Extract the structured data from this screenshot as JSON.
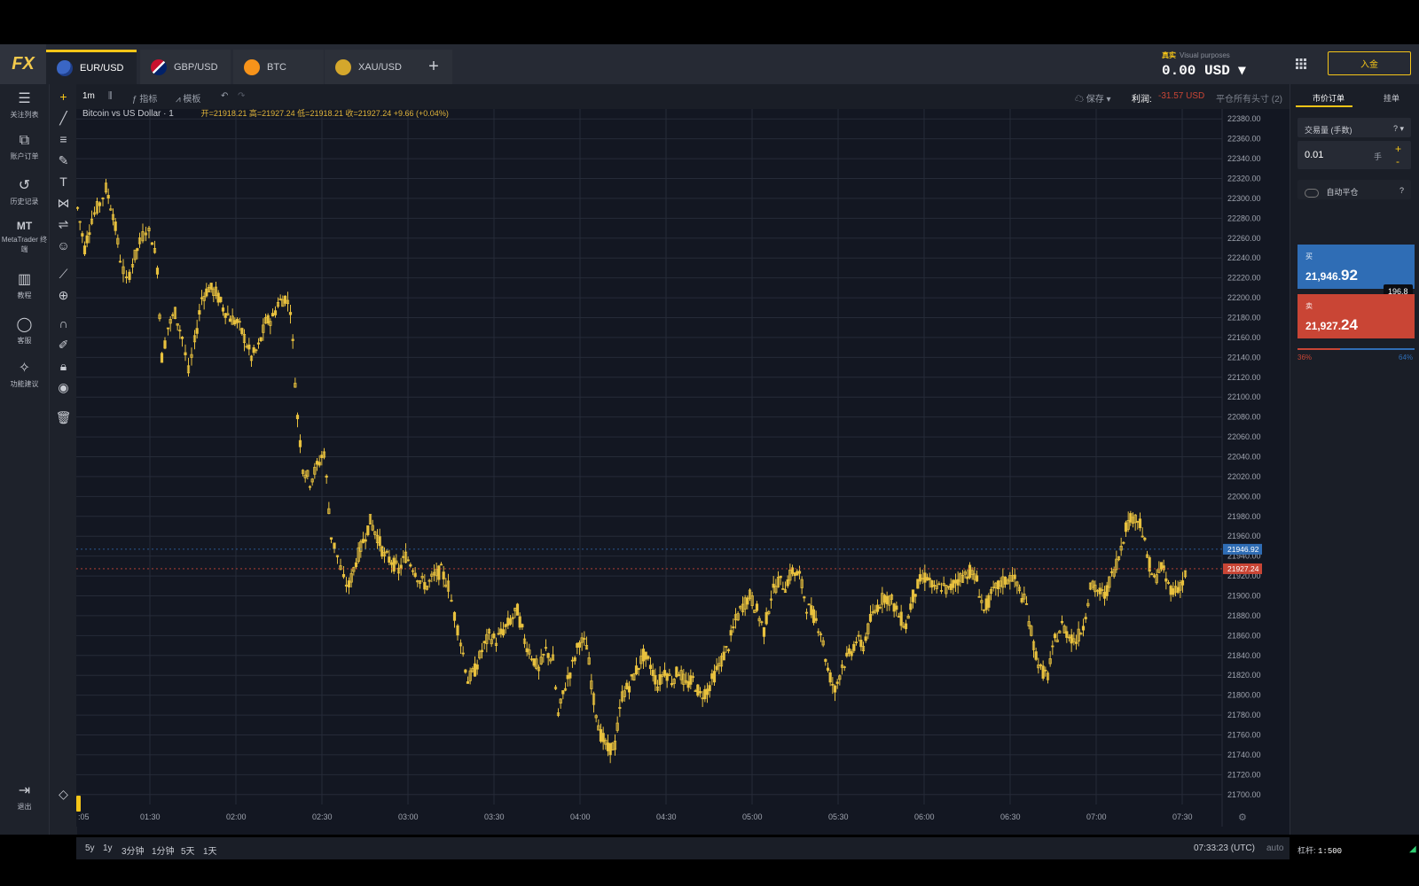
{
  "header": {
    "logo": "FX",
    "tabs": [
      {
        "label": "EUR/USD",
        "active": true
      },
      {
        "label": "GBP/USD",
        "active": false
      },
      {
        "label": "BTC",
        "active": false
      },
      {
        "label": "XAU/USD",
        "active": false
      }
    ],
    "add_tab": "+",
    "account_type": "真实",
    "account_note": "Visual purposes",
    "balance": "0.00 USD",
    "deposit_label": "入金"
  },
  "sidebar": {
    "items": [
      {
        "icon": "list-icon",
        "label": "关注列表"
      },
      {
        "icon": "briefcase-icon",
        "label": "账户订单"
      },
      {
        "icon": "history-icon",
        "label": "历史记录"
      },
      {
        "icon": "mt-icon",
        "label": "MetaTrader 终端",
        "glyph": "MT"
      },
      {
        "icon": "book-icon",
        "label": "教程"
      },
      {
        "icon": "chat-icon",
        "label": "客服"
      },
      {
        "icon": "bulb-icon",
        "label": "功能建议"
      }
    ],
    "logout_label": "退出"
  },
  "toolbar": {
    "timeframe": "1m",
    "indicators_label": "指标",
    "templates_label": "模板",
    "save_label": "保存",
    "profit_label": "利润:",
    "profit_value": "-31.57 USD",
    "close_all_label": "平仓所有头寸 (2)"
  },
  "legend": {
    "title": "Bitcoin vs US Dollar · 1",
    "ohlc": "开=21918.21 高=21927.24 低=21918.21 收=21927.24 +9.66 (+0.04%)"
  },
  "chart_data": {
    "type": "candlestick",
    "title": "Bitcoin vs US Dollar · 1",
    "ylim": [
      21690,
      22390
    ],
    "y_ticks": [
      "22380.00",
      "22360.00",
      "22340.00",
      "22320.00",
      "22300.00",
      "22280.00",
      "22260.00",
      "22240.00",
      "22220.00",
      "22200.00",
      "22180.00",
      "22160.00",
      "22140.00",
      "22120.00",
      "22100.00",
      "22080.00",
      "22060.00",
      "22040.00",
      "22020.00",
      "22000.00",
      "21980.00",
      "21960.00",
      "21940.00",
      "21920.00",
      "21900.00",
      "21880.00",
      "21860.00",
      "21840.00",
      "21820.00",
      "21800.00",
      "21780.00",
      "21760.00",
      "21740.00",
      "21720.00",
      "21700.00"
    ],
    "x_ticks": [
      ":05",
      "01:30",
      "02:00",
      "02:30",
      "03:00",
      "03:30",
      "04:00",
      "04:30",
      "05:00",
      "05:30",
      "06:00",
      "06:30",
      "07:00",
      "07:30"
    ],
    "path_price": [
      [
        0,
        22290
      ],
      [
        8,
        22250
      ],
      [
        16,
        22280
      ],
      [
        25,
        22295
      ],
      [
        32,
        22310
      ],
      [
        40,
        22285
      ],
      [
        48,
        22240
      ],
      [
        55,
        22215
      ],
      [
        62,
        22235
      ],
      [
        70,
        22255
      ],
      [
        77,
        22270
      ],
      [
        84,
        22260
      ],
      [
        90,
        22230
      ],
      [
        95,
        22140
      ],
      [
        102,
        22170
      ],
      [
        110,
        22185
      ],
      [
        118,
        22160
      ],
      [
        125,
        22125
      ],
      [
        132,
        22155
      ],
      [
        140,
        22200
      ],
      [
        148,
        22210
      ],
      [
        156,
        22205
      ],
      [
        164,
        22190
      ],
      [
        172,
        22180
      ],
      [
        180,
        22175
      ],
      [
        188,
        22160
      ],
      [
        196,
        22140
      ],
      [
        204,
        22150
      ],
      [
        212,
        22175
      ],
      [
        220,
        22180
      ],
      [
        226,
        22195
      ],
      [
        234,
        22200
      ],
      [
        240,
        22190
      ],
      [
        248,
        22080
      ],
      [
        254,
        22030
      ],
      [
        262,
        22015
      ],
      [
        270,
        22030
      ],
      [
        278,
        22045
      ],
      [
        286,
        21960
      ],
      [
        293,
        21940
      ],
      [
        300,
        21915
      ],
      [
        306,
        21910
      ],
      [
        314,
        21935
      ],
      [
        322,
        21955
      ],
      [
        330,
        21975
      ],
      [
        338,
        21960
      ],
      [
        346,
        21940
      ],
      [
        354,
        21935
      ],
      [
        362,
        21925
      ],
      [
        370,
        21940
      ],
      [
        378,
        21930
      ],
      [
        386,
        21915
      ],
      [
        394,
        21910
      ],
      [
        402,
        21920
      ],
      [
        410,
        21925
      ],
      [
        418,
        21910
      ],
      [
        425,
        21880
      ],
      [
        432,
        21855
      ],
      [
        440,
        21815
      ],
      [
        448,
        21825
      ],
      [
        456,
        21845
      ],
      [
        464,
        21860
      ],
      [
        472,
        21855
      ],
      [
        480,
        21865
      ],
      [
        488,
        21875
      ],
      [
        496,
        21885
      ],
      [
        504,
        21855
      ],
      [
        512,
        21840
      ],
      [
        520,
        21825
      ],
      [
        528,
        21845
      ],
      [
        536,
        21835
      ],
      [
        542,
        21780
      ],
      [
        550,
        21810
      ],
      [
        558,
        21830
      ],
      [
        566,
        21855
      ],
      [
        574,
        21850
      ],
      [
        582,
        21795
      ],
      [
        590,
        21760
      ],
      [
        598,
        21745
      ],
      [
        606,
        21750
      ],
      [
        614,
        21800
      ],
      [
        622,
        21810
      ],
      [
        630,
        21825
      ],
      [
        638,
        21840
      ],
      [
        646,
        21830
      ],
      [
        654,
        21810
      ],
      [
        662,
        21825
      ],
      [
        670,
        21815
      ],
      [
        678,
        21825
      ],
      [
        686,
        21810
      ],
      [
        694,
        21815
      ],
      [
        702,
        21800
      ],
      [
        710,
        21805
      ],
      [
        718,
        21820
      ],
      [
        726,
        21835
      ],
      [
        734,
        21850
      ],
      [
        742,
        21875
      ],
      [
        750,
        21890
      ],
      [
        758,
        21900
      ],
      [
        766,
        21885
      ],
      [
        774,
        21865
      ],
      [
        782,
        21900
      ],
      [
        790,
        21915
      ],
      [
        798,
        21910
      ],
      [
        806,
        21925
      ],
      [
        814,
        21920
      ],
      [
        822,
        21890
      ],
      [
        830,
        21880
      ],
      [
        838,
        21865
      ],
      [
        846,
        21825
      ],
      [
        854,
        21805
      ],
      [
        862,
        21830
      ],
      [
        870,
        21840
      ],
      [
        878,
        21855
      ],
      [
        886,
        21850
      ],
      [
        894,
        21875
      ],
      [
        902,
        21890
      ],
      [
        910,
        21900
      ],
      [
        918,
        21895
      ],
      [
        926,
        21880
      ],
      [
        934,
        21870
      ],
      [
        942,
        21900
      ],
      [
        950,
        21915
      ],
      [
        958,
        21920
      ],
      [
        966,
        21905
      ],
      [
        974,
        21910
      ],
      [
        982,
        21905
      ],
      [
        990,
        21915
      ],
      [
        998,
        21920
      ],
      [
        1006,
        21925
      ],
      [
        1014,
        21915
      ],
      [
        1022,
        21885
      ],
      [
        1030,
        21900
      ],
      [
        1038,
        21910
      ],
      [
        1046,
        21915
      ],
      [
        1054,
        21920
      ],
      [
        1062,
        21905
      ],
      [
        1070,
        21890
      ],
      [
        1078,
        21850
      ],
      [
        1086,
        21825
      ],
      [
        1094,
        21820
      ],
      [
        1102,
        21855
      ],
      [
        1110,
        21870
      ],
      [
        1118,
        21860
      ],
      [
        1126,
        21855
      ],
      [
        1134,
        21870
      ],
      [
        1142,
        21910
      ],
      [
        1150,
        21905
      ],
      [
        1158,
        21900
      ],
      [
        1166,
        21920
      ],
      [
        1174,
        21940
      ],
      [
        1182,
        21970
      ],
      [
        1190,
        21980
      ],
      [
        1198,
        21975
      ],
      [
        1206,
        21940
      ],
      [
        1214,
        21915
      ],
      [
        1222,
        21930
      ],
      [
        1230,
        21910
      ],
      [
        1238,
        21905
      ],
      [
        1246,
        21915
      ],
      [
        1252,
        21927
      ]
    ],
    "last_ask": "21946.92",
    "last_bid": "21927.24",
    "ask_color": "#2f6db5",
    "bid_color": "#c94535",
    "candle_color": "#e8c13e",
    "grid": true
  },
  "bottom": {
    "ranges": [
      "5y",
      "1y",
      "3分钟",
      "1分钟",
      "5天",
      "1天"
    ],
    "clock": "07:33:23 (UTC)",
    "auto_label": "auto"
  },
  "panel": {
    "tab_market": "市价订单",
    "tab_pending": "挂单",
    "volume_label": "交易量 (手数)",
    "volume_value": "0.01",
    "volume_unit": "手",
    "autoclose_label": "自动平仓",
    "buy_label": "买",
    "buy_price_main": "21,946.",
    "buy_price_big": "92",
    "sell_label": "卖",
    "sell_price_main": "21,927.",
    "sell_price_big": "24",
    "spread": "196.8",
    "sell_pct": "36%",
    "buy_pct": "64%",
    "leverage_label": "杠杆:",
    "leverage_value": "1:500"
  }
}
